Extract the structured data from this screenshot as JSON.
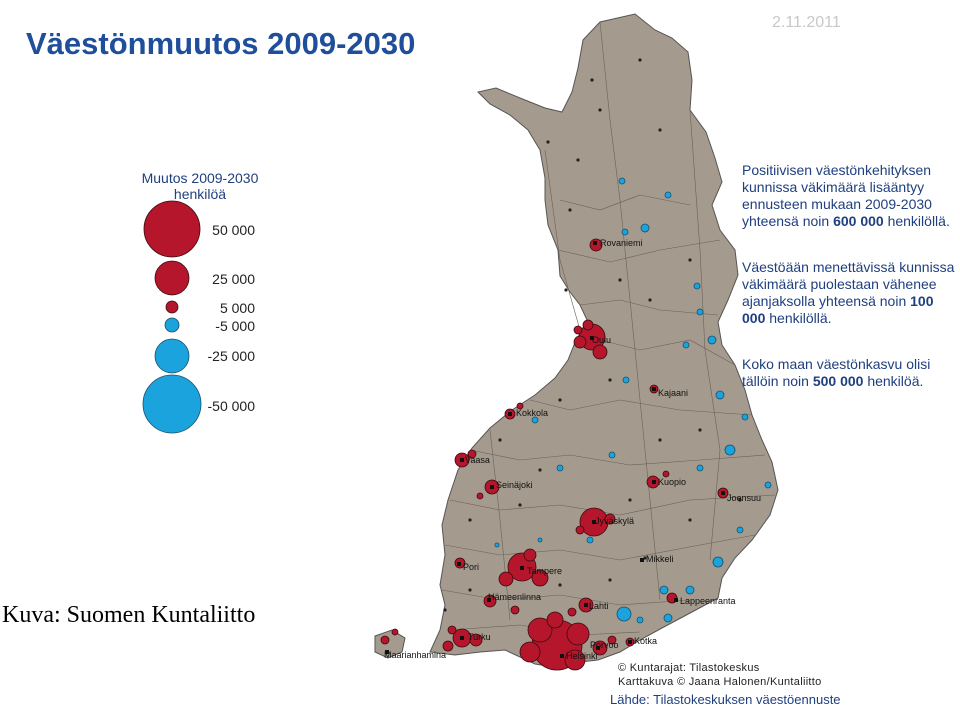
{
  "title": "Väestönmuutos 2009-2030",
  "date": "2.11.2011",
  "legend": {
    "title_line1": "Muutos 2009-2030",
    "title_line2": "henkilöä",
    "items": [
      {
        "label": "50 000",
        "value": 50000,
        "color": "#b5162b"
      },
      {
        "label": "25 000",
        "value": 25000,
        "color": "#b5162b"
      },
      {
        "label": "5 000",
        "value": 5000,
        "color": "#b5162b"
      },
      {
        "label": "-5 000",
        "value": -5000,
        "color": "#1aa3dd"
      },
      {
        "label": "-25 000",
        "value": -25000,
        "color": "#1aa3dd"
      },
      {
        "label": "-50 000",
        "value": -50000,
        "color": "#1aa3dd"
      }
    ]
  },
  "info": {
    "p1_a": "Positiivisen väestönkehityksen kunnissa väkimäärä lisääntyy ennusteen mukaan 2009-2030 yhteensä noin ",
    "p1_b": "600 000",
    "p1_c": " henkilöllä.",
    "p2_a": "Väestöään menettävissä kunnissa väkimäärä puolestaan vähenee ajanjaksolla yhteensä noin ",
    "p2_b": "100 000",
    "p2_c": " henkilöllä.",
    "p3_a": "Koko maan väestönkasvu olisi tällöin noin ",
    "p3_b": "500 000",
    "p3_c": " henkilöä."
  },
  "credit": "Kuva: Suomen Kuntaliitto",
  "copyright_line1": "© Kuntarajat: Tilastokeskus",
  "copyright_line2": "Karttakuva © Jaana Halonen/Kuntaliitto",
  "source": "Lähde: Tilastokeskuksen väestöennuste",
  "colors": {
    "growth": "#b5162b",
    "decline": "#1aa3dd",
    "land": "#a59a8e",
    "title": "#1f4e9a"
  },
  "cities": [
    "Rovaniemi",
    "Oulu",
    "Kajaani",
    "Kokkola",
    "Vaasa",
    "Seinäjoki",
    "Kuopio",
    "Joensuu",
    "Jyväskylä",
    "Mikkeli",
    "Pori",
    "Tampere",
    "Hämeenlinna",
    "Lahti",
    "Lappeenranta",
    "Turku",
    "Porvoo",
    "Kotka",
    "Helsinki",
    "Maarianhamina"
  ]
}
